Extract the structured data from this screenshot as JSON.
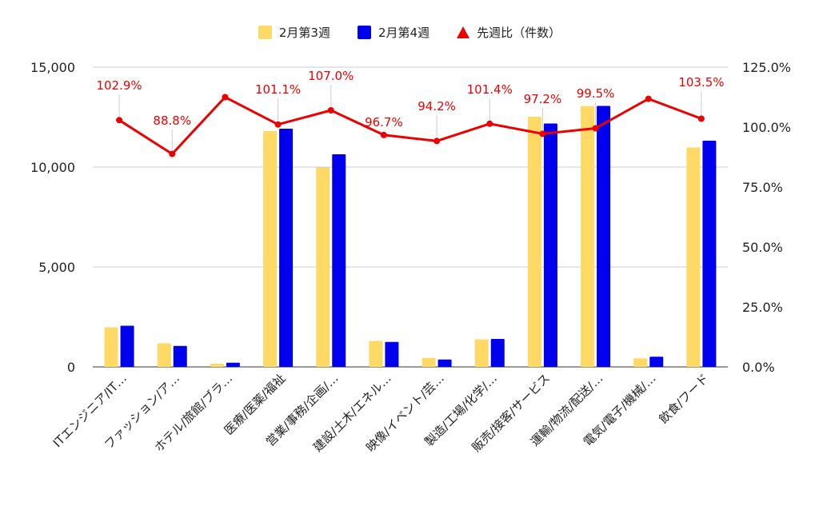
{
  "chart_data": {
    "type": "bar",
    "categories": [
      "ITエンジニア/IT…",
      "ファッション/ア…",
      "ホテル/旅館/ブラ…",
      "医療/医薬/福祉",
      "営業/事務/企画/…",
      "建設/土木/エネル…",
      "映像/イベント/芸…",
      "製造/工場/化学/…",
      "販売/接客/サービス",
      "運輸/物流/配送/…",
      "電気/電子/機械/…",
      "飲食/フード"
    ],
    "series": [
      {
        "name": "2月第3週",
        "color": "#FFD966",
        "values": [
          1980,
          1180,
          160,
          11800,
          9980,
          1300,
          450,
          1380,
          12520,
          13050,
          430,
          10980
        ]
      },
      {
        "name": "2月第4週",
        "color": "#0000EE",
        "values": [
          2060,
          1050,
          210,
          11920,
          10640,
          1250,
          370,
          1400,
          12180,
          13060,
          510,
          11320
        ]
      }
    ],
    "line_series": {
      "name": "先週比（件数）",
      "color": "#EE0000",
      "values": [
        102.9,
        88.8,
        112.5,
        101.1,
        107.0,
        96.7,
        94.2,
        101.4,
        97.2,
        99.5,
        111.8,
        103.5
      ],
      "labels": [
        "102.9%",
        "88.8%",
        "",
        "101.1%",
        "107.0%",
        "96.7%",
        "94.2%",
        "101.4%",
        "97.2%",
        "99.5%",
        "",
        "103.5%"
      ]
    },
    "y_left": {
      "ylim": [
        0,
        15000
      ],
      "ticks": [
        "0",
        "5,000",
        "10,000",
        "15,000"
      ]
    },
    "y_right": {
      "ylim": [
        0,
        125
      ],
      "ticks": [
        "0.0%",
        "25.0%",
        "50.0%",
        "75.0%",
        "100.0%",
        "125.0%"
      ]
    },
    "grid": true,
    "legend_position": "top-center"
  }
}
